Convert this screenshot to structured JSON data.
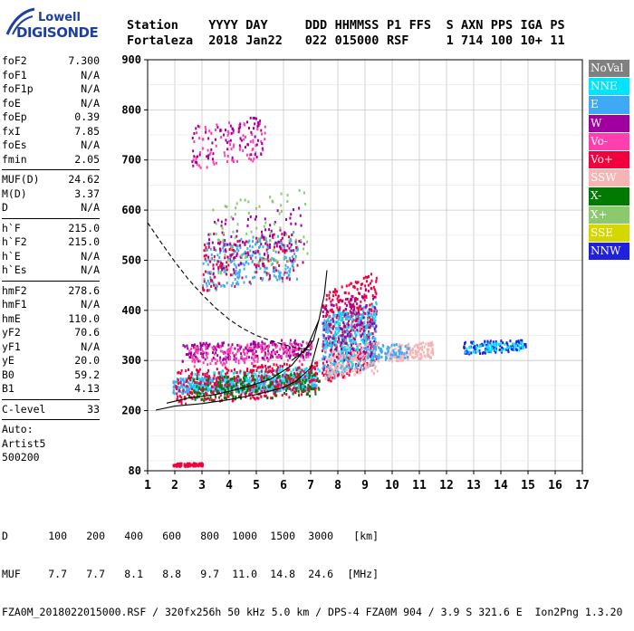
{
  "logo": {
    "line1": "Lowell",
    "line2": "DIGISONDE"
  },
  "header": {
    "labels": [
      "Station",
      "YYYY",
      "DAY",
      "DDD",
      "HHMMSS",
      "P1",
      "FFS",
      "S",
      "AXN",
      "PPS",
      "IGA",
      "PS"
    ],
    "values": [
      "Fortaleza",
      "2018",
      "Jan22",
      "022",
      "015000",
      "RSF",
      "",
      "1",
      "714",
      "100",
      "10+",
      "11"
    ]
  },
  "params": [
    {
      "name": "foF2",
      "value": "7.300"
    },
    {
      "name": "foF1",
      "value": "N/A"
    },
    {
      "name": "foF1p",
      "value": "N/A"
    },
    {
      "name": "foE",
      "value": "N/A"
    },
    {
      "name": "foEp",
      "value": "0.39"
    },
    {
      "name": "fxI",
      "value": "7.85"
    },
    {
      "name": "foEs",
      "value": "N/A"
    },
    {
      "name": "fmin",
      "value": "2.05"
    },
    {
      "sep": true
    },
    {
      "name": "MUF(D)",
      "value": "24.62"
    },
    {
      "name": "M(D)",
      "value": "3.37"
    },
    {
      "name": "D",
      "value": "N/A"
    },
    {
      "sep": true
    },
    {
      "name": "h`F",
      "value": "215.0"
    },
    {
      "name": "h`F2",
      "value": "215.0"
    },
    {
      "name": "h`E",
      "value": "N/A"
    },
    {
      "name": "h`Es",
      "value": "N/A"
    },
    {
      "sep": true
    },
    {
      "name": "hmF2",
      "value": "278.6"
    },
    {
      "name": "hmF1",
      "value": "N/A"
    },
    {
      "name": "hmE",
      "value": "110.0"
    },
    {
      "name": "yF2",
      "value": "70.6"
    },
    {
      "name": "yF1",
      "value": "N/A"
    },
    {
      "name": "yE",
      "value": "20.0"
    },
    {
      "name": "B0",
      "value": "59.2"
    },
    {
      "name": "B1",
      "value": "4.13"
    },
    {
      "sep": true
    },
    {
      "name": "C-level",
      "value": "33"
    },
    {
      "sep": true
    },
    {
      "text": "Auto:"
    },
    {
      "text": "Artist5"
    },
    {
      "text": "500200"
    }
  ],
  "legend": [
    {
      "label": "NoVal",
      "color": "#808080"
    },
    {
      "label": "NNE",
      "color": "#00e5ff"
    },
    {
      "label": "E",
      "color": "#3fa9f5"
    },
    {
      "label": "W",
      "color": "#a000a0"
    },
    {
      "label": "Vo-",
      "color": "#ff3fb0"
    },
    {
      "label": "Vo+",
      "color": "#f0003c"
    },
    {
      "label": "SSW",
      "color": "#f5b5b5"
    },
    {
      "label": "X-",
      "color": "#007a00"
    },
    {
      "label": "X+",
      "color": "#8cc86e"
    },
    {
      "label": "SSE",
      "color": "#d6d600"
    },
    {
      "label": "NNW",
      "color": "#2020e0"
    }
  ],
  "footer": {
    "d_label": "D",
    "d_values": [
      "100",
      "200",
      "400",
      "600",
      "800",
      "1000",
      "1500",
      "3000",
      "[km]"
    ],
    "muf_label": "MUF",
    "muf_values": [
      "7.7",
      "7.7",
      "8.1",
      "8.8",
      "9.7",
      "11.0",
      "14.8",
      "24.6",
      "[MHz]"
    ],
    "info": "FZA0M_2018022015000.RSF / 320fx256h 50 kHz 5.0 km / DPS-4 FZA0M 904 / 3.9 S 321.6 E  Ion2Png 1.3.20"
  },
  "chart_data": {
    "type": "scatter",
    "xlim": [
      1,
      17
    ],
    "ylim": [
      80,
      900
    ],
    "xticks": [
      1,
      2,
      3,
      4,
      5,
      6,
      7,
      8,
      9,
      10,
      11,
      12,
      13,
      14,
      15,
      16,
      17
    ],
    "yticks": [
      80,
      200,
      300,
      400,
      500,
      600,
      700,
      800,
      900
    ],
    "grid": true,
    "legend_position": "right",
    "clusters": [
      {
        "name": "E",
        "x": [
          1.9,
          7.2
        ],
        "y": [
          235,
          275
        ],
        "density": 500
      },
      {
        "name": "NNE",
        "x": [
          2.5,
          7.3
        ],
        "y": [
          240,
          290
        ],
        "density": 200
      },
      {
        "name": "Vo+",
        "x": [
          2.0,
          7.3
        ],
        "y": [
          215,
          300
        ],
        "density": 380
      },
      {
        "name": "X-",
        "x": [
          2.5,
          7.3
        ],
        "y": [
          220,
          280
        ],
        "density": 180
      },
      {
        "name": "W",
        "x": [
          2.2,
          7.0
        ],
        "y": [
          300,
          345
        ],
        "density": 220
      },
      {
        "name": "Vo-",
        "x": [
          2.5,
          7.0
        ],
        "y": [
          290,
          340
        ],
        "density": 170
      },
      {
        "name": "Vo+",
        "x": [
          7.4,
          9.4
        ],
        "y": [
          250,
          480
        ],
        "density": 420
      },
      {
        "name": "E",
        "x": [
          7.4,
          9.4
        ],
        "y": [
          260,
          420
        ],
        "density": 260
      },
      {
        "name": "NNE",
        "x": [
          7.4,
          9.4
        ],
        "y": [
          270,
          420
        ],
        "density": 160
      },
      {
        "name": "W",
        "x": [
          7.4,
          9.4
        ],
        "y": [
          280,
          450
        ],
        "density": 140
      },
      {
        "name": "SSW",
        "x": [
          7.5,
          9.5
        ],
        "y": [
          260,
          340
        ],
        "density": 120
      },
      {
        "name": "SSW",
        "x": [
          9.8,
          11.5
        ],
        "y": [
          300,
          340
        ],
        "density": 140
      },
      {
        "name": "E",
        "x": [
          9.3,
          10.6
        ],
        "y": [
          300,
          340
        ],
        "density": 60
      },
      {
        "name": "NNW",
        "x": [
          12.6,
          14.9
        ],
        "y": [
          315,
          345
        ],
        "density": 110
      },
      {
        "name": "NNE",
        "x": [
          12.6,
          14.8
        ],
        "y": [
          318,
          340
        ],
        "density": 60
      },
      {
        "name": "E",
        "x": [
          3.0,
          6.5
        ],
        "y": [
          440,
          560
        ],
        "density": 260
      },
      {
        "name": "Vo+",
        "x": [
          3.0,
          6.5
        ],
        "y": [
          440,
          560
        ],
        "density": 120
      },
      {
        "name": "W",
        "x": [
          3.2,
          6.8
        ],
        "y": [
          470,
          610
        ],
        "density": 110
      },
      {
        "name": "X+",
        "x": [
          3.2,
          6.9
        ],
        "y": [
          470,
          650
        ],
        "density": 80
      },
      {
        "name": "Vo-",
        "x": [
          2.6,
          5.3
        ],
        "y": [
          680,
          790
        ],
        "density": 90
      },
      {
        "name": "W",
        "x": [
          2.6,
          5.2
        ],
        "y": [
          690,
          790
        ],
        "density": 70
      },
      {
        "name": "Vo+",
        "x": [
          1.9,
          3.0
        ],
        "y": [
          90,
          98
        ],
        "density": 90
      }
    ],
    "curves": [
      {
        "style": "dashed",
        "x": [
          1.0,
          1.5,
          2.0,
          2.5,
          3.0,
          3.5,
          4.0,
          4.5,
          5.0,
          5.5,
          6.0,
          6.5,
          7.0
        ],
        "y": [
          575,
          535,
          497,
          462,
          432,
          405,
          382,
          364,
          350,
          340,
          332,
          325,
          320
        ]
      },
      {
        "style": "solid",
        "x": [
          1.3,
          2.0,
          3.0,
          4.0,
          5.0,
          6.0,
          6.5,
          7.0,
          7.3
        ],
        "y": [
          201,
          209,
          214,
          222,
          232,
          246,
          260,
          285,
          345
        ]
      },
      {
        "style": "solid",
        "x": [
          1.7,
          2.5,
          3.5,
          4.5,
          5.5,
          6.3,
          6.9,
          7.3
        ],
        "y": [
          215,
          225,
          232,
          245,
          262,
          290,
          330,
          380
        ]
      },
      {
        "style": "solid",
        "x": [
          6.3,
          6.8,
          7.1,
          7.3,
          7.5,
          7.6
        ],
        "y": [
          300,
          320,
          340,
          380,
          430,
          480
        ]
      }
    ]
  }
}
